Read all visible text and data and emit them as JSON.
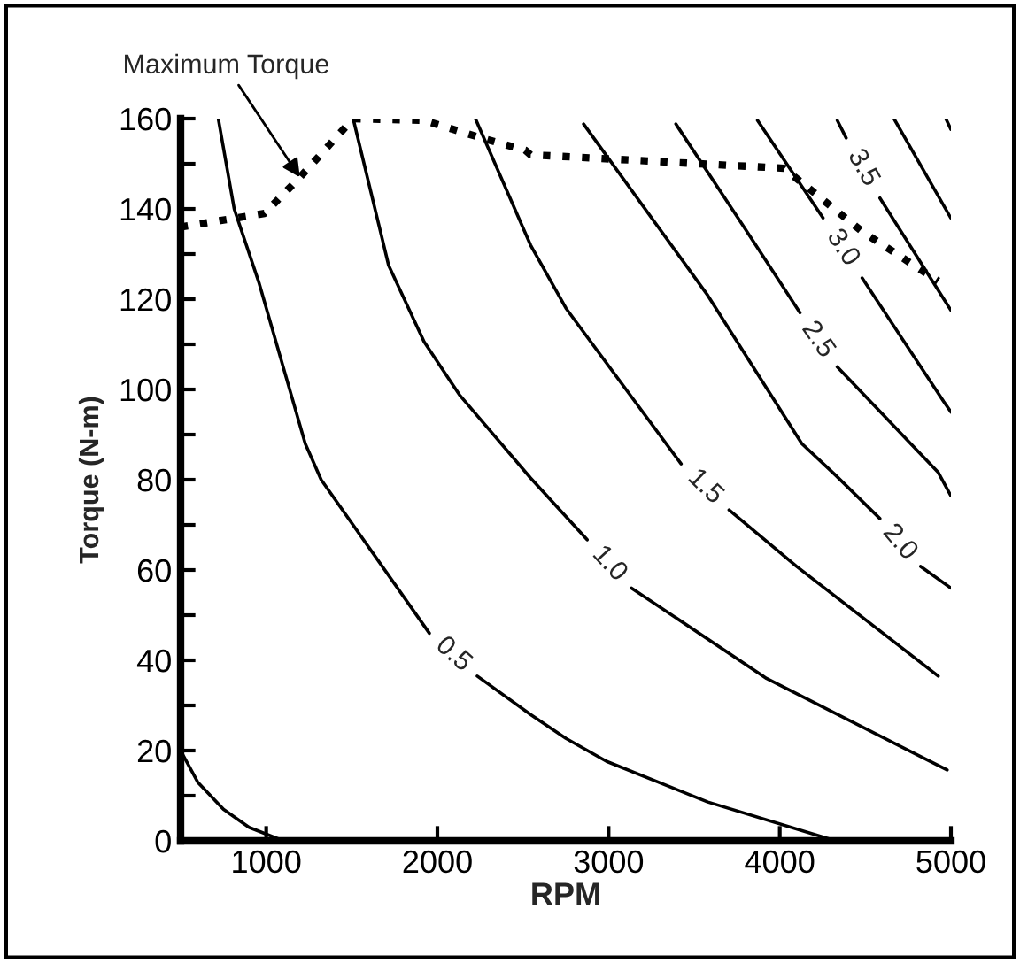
{
  "chart_data": {
    "type": "line",
    "xlabel": "RPM",
    "ylabel": "Torque (N-m)",
    "xlim": [
      500,
      5000
    ],
    "xticks": [
      1000,
      2000,
      3000,
      4000,
      5000
    ],
    "ylim": [
      0,
      160
    ],
    "yticks": [
      0,
      {
        "value": 10,
        "label": null
      },
      20,
      {
        "value": 30,
        "label": null
      },
      40,
      {
        "value": 50,
        "label": null
      },
      60,
      {
        "value": 70,
        "label": null
      },
      80,
      {
        "value": 90,
        "label": null
      },
      100,
      {
        "value": 110,
        "label": null
      },
      120,
      {
        "value": 130,
        "label": null
      },
      140,
      {
        "value": 150,
        "label": null
      },
      160
    ],
    "grid": false,
    "marker": "none",
    "annotations": [
      {
        "text": "Maximum Torque",
        "x": 1197,
        "y": 147
      }
    ],
    "series": [
      {
        "color": "#000000",
        "line_style": "dotted",
        "x": [
          500,
          990,
          1197,
          1508,
          1922,
          2233,
          2513,
          2544,
          4025,
          4481,
          4926
        ],
        "values": [
          136,
          139,
          147,
          160,
          159.6,
          156,
          153,
          152,
          149,
          135,
          124
        ]
      },
      {
        "color": "#000000",
        "line_style": "solid",
        "x": [
          500,
          600,
          750,
          900,
          1100
        ],
        "values": [
          20,
          13,
          7,
          3,
          0
        ]
      },
      {
        "name": "0.5",
        "color": "#000000",
        "line_style": "solid",
        "x": [
          720,
          813,
          959,
          1228,
          1321,
          1953,
          2093,
          2233,
          2544,
          2751,
          2989,
          3580,
          4326
        ],
        "values": [
          160,
          140,
          123.5,
          88,
          80,
          46,
          null,
          36.5,
          28,
          22.7,
          17.6,
          8.6,
          0
        ]
      },
      {
        "name": "1.0",
        "color": "#000000",
        "line_style": "solid",
        "x": [
          1508,
          1715,
          1922,
          2129,
          2544,
          2875,
          3004,
          3134,
          3922,
          4978
        ],
        "values": [
          160,
          127.5,
          110.6,
          98.8,
          80.4,
          66.7,
          null,
          56,
          36,
          15.7
        ]
      },
      {
        "name": "1.5",
        "color": "#000000",
        "line_style": "solid",
        "x": [
          2222,
          2544,
          2751,
          3424,
          3564,
          3704,
          4098,
          4926
        ],
        "values": [
          160,
          132,
          118,
          83.5,
          null,
          73.3,
          60.8,
          36.5
        ]
      },
      {
        "name": "2.0",
        "color": "#000000",
        "line_style": "solid",
        "x": [
          2854,
          3580,
          4129,
          4326,
          4585,
          4700,
          4823,
          4999
        ],
        "values": [
          158.8,
          120.8,
          88,
          81,
          71.4,
          null,
          60.8,
          56
        ]
      },
      {
        "name": "2.5",
        "color": "#000000",
        "line_style": "solid",
        "x": [
          3393,
          3756,
          4118,
          4222,
          4336,
          4926,
          4999
        ],
        "values": [
          158.8,
          138,
          117,
          null,
          105,
          81.6,
          76.5
        ]
      },
      {
        "name": "3.0",
        "color": "#000000",
        "line_style": "solid",
        "x": [
          3870,
          4253,
          4367,
          4481,
          4958,
          5000
        ],
        "values": [
          159.6,
          138,
          null,
          124.7,
          97.3,
          95
        ]
      },
      {
        "name": "3.5",
        "color": "#000000",
        "line_style": "solid",
        "x": [
          4336,
          4388,
          4486,
          4585,
          4999
        ],
        "values": [
          159.6,
          155.7,
          null,
          142.4,
          117.6
        ]
      },
      {
        "color": "#000000",
        "line_style": "solid",
        "x": [
          4667,
          4999
        ],
        "values": [
          160,
          138
        ]
      },
      {
        "color": "#000000",
        "line_style": "solid",
        "x": [
          4970,
          5000
        ],
        "values": [
          160,
          157.6
        ]
      }
    ]
  }
}
